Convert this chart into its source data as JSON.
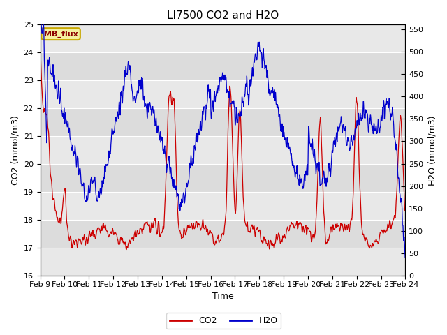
{
  "title": "LI7500 CO2 and H2O",
  "xlabel": "Time",
  "ylabel_left": "CO2 (mmol/m3)",
  "ylabel_right": "H2O (mmol/m3)",
  "ylim_left": [
    16.0,
    25.0
  ],
  "ylim_right": [
    0,
    560
  ],
  "yticks_left": [
    16.0,
    17.0,
    18.0,
    19.0,
    20.0,
    21.0,
    22.0,
    23.0,
    24.0,
    25.0
  ],
  "yticks_right": [
    0,
    50,
    100,
    150,
    200,
    250,
    300,
    350,
    400,
    450,
    500,
    550
  ],
  "xtick_labels": [
    "Feb 9",
    "Feb 10",
    "Feb 11",
    "Feb 12",
    "Feb 13",
    "Feb 14",
    "Feb 15",
    "Feb 16",
    "Feb 17",
    "Feb 18",
    "Feb 19",
    "Feb 20",
    "Feb 21",
    "Feb 22",
    "Feb 23",
    "Feb 24"
  ],
  "co2_color": "#cc0000",
  "h2o_color": "#0000cc",
  "background_color": "#ffffff",
  "plot_bg_color": "#dcdcdc",
  "band_color_light": "#e8e8e8",
  "annotation_text": "MB_flux",
  "legend_co2": "CO2",
  "legend_h2o": "H2O",
  "title_fontsize": 11,
  "axis_fontsize": 9,
  "tick_fontsize": 8,
  "n_points": 1500
}
